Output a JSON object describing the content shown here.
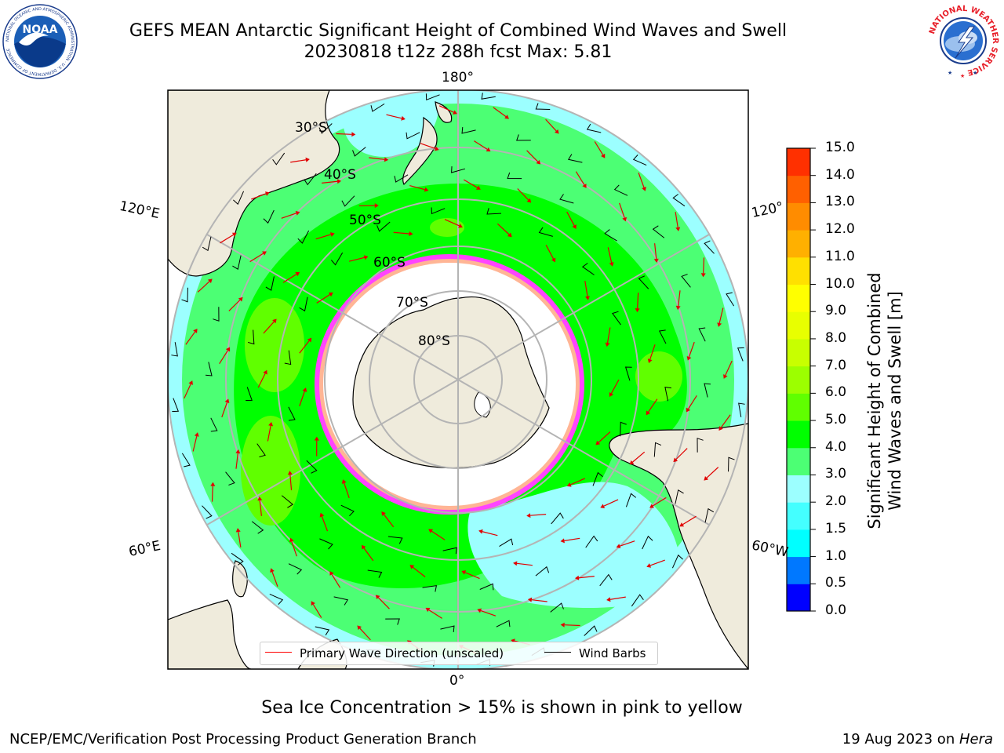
{
  "header": {
    "title_line1": "GEFS MEAN Antarctic Significant Height of Combined Wind Waves and Swell",
    "title_line2": "20230818 t12z 288h fcst   Max: 5.81"
  },
  "logos": {
    "noaa_text": "NOAA",
    "noaa_ring_text": "NATIONAL OCEANIC AND ATMOSPHERIC ADMINISTRATION · U.S. DEPARTMENT OF COMMERCE",
    "nws_ring_text": "NATIONAL WEATHER SERVICE"
  },
  "map": {
    "projection": "south-polar stereographic",
    "lon_labels": {
      "top": "180°",
      "bottom": "0°",
      "left_upper": "120°E",
      "left_lower": "60°E",
      "right_upper": "120°",
      "right_lower": "60°W"
    },
    "lat_labels": [
      "30°S",
      "40°S",
      "50°S",
      "60°S",
      "70°S",
      "80°S"
    ],
    "colors": {
      "land": "#efebdc",
      "ice": "#ffffff",
      "ice_edge": [
        "#ff44ff",
        "#ff9ad8",
        "#ffd27a"
      ],
      "graticule": "#b4b4b4",
      "arrow": "#ff0000",
      "barb": "#000000"
    }
  },
  "colorbar": {
    "label_line1": "Significant Height of Combined",
    "label_line2": "Wind Waves and Swell [m]",
    "ticks": [
      "15.0",
      "14.0",
      "13.0",
      "12.0",
      "11.0",
      "10.0",
      "9.0",
      "8.0",
      "7.0",
      "6.0",
      "5.0",
      "4.0",
      "3.0",
      "2.0",
      "1.5",
      "1.0",
      "0.5",
      "0.0"
    ],
    "colors": [
      "#0000ff",
      "#0078ff",
      "#00ffff",
      "#44ffff",
      "#9cffff",
      "#4cff74",
      "#00ff00",
      "#60ff00",
      "#9cff00",
      "#c8ff00",
      "#e8ff00",
      "#ffff00",
      "#ffe000",
      "#ffb000",
      "#ff8c00",
      "#ff6000",
      "#ff3000",
      "#ff0000"
    ]
  },
  "legend": {
    "wave_label": "Primary Wave Direction (unscaled)",
    "barb_label": "Wind Barbs"
  },
  "footer": {
    "ice_note": "Sea Ice Concentration > 15% is shown in pink to yellow",
    "credit": "NCEP/EMC/Verification Post Processing Product Generation Branch",
    "date_prefix": "19 Aug 2023 on ",
    "date_machine": "Hera"
  }
}
